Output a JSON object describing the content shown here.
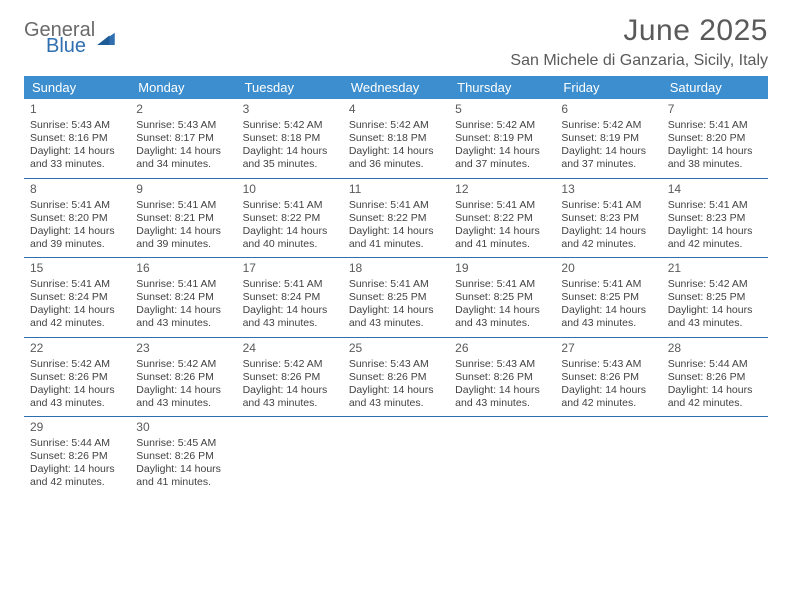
{
  "logo": {
    "text1": "General",
    "text2": "Blue"
  },
  "title": "June 2025",
  "location": "San Michele di Ganzaria, Sicily, Italy",
  "colors": {
    "header_bg": "#3c8ecf",
    "header_text": "#ffffff",
    "border": "#2f6fb0",
    "logo_gray": "#6a6a6a",
    "logo_blue": "#2f6fb0",
    "body_text": "#424242"
  },
  "day_names": [
    "Sunday",
    "Monday",
    "Tuesday",
    "Wednesday",
    "Thursday",
    "Friday",
    "Saturday"
  ],
  "weeks": [
    [
      {
        "day": "1",
        "sunrise": "5:43 AM",
        "sunset": "8:16 PM",
        "daylight": "14 hours and 33 minutes."
      },
      {
        "day": "2",
        "sunrise": "5:43 AM",
        "sunset": "8:17 PM",
        "daylight": "14 hours and 34 minutes."
      },
      {
        "day": "3",
        "sunrise": "5:42 AM",
        "sunset": "8:18 PM",
        "daylight": "14 hours and 35 minutes."
      },
      {
        "day": "4",
        "sunrise": "5:42 AM",
        "sunset": "8:18 PM",
        "daylight": "14 hours and 36 minutes."
      },
      {
        "day": "5",
        "sunrise": "5:42 AM",
        "sunset": "8:19 PM",
        "daylight": "14 hours and 37 minutes."
      },
      {
        "day": "6",
        "sunrise": "5:42 AM",
        "sunset": "8:19 PM",
        "daylight": "14 hours and 37 minutes."
      },
      {
        "day": "7",
        "sunrise": "5:41 AM",
        "sunset": "8:20 PM",
        "daylight": "14 hours and 38 minutes."
      }
    ],
    [
      {
        "day": "8",
        "sunrise": "5:41 AM",
        "sunset": "8:20 PM",
        "daylight": "14 hours and 39 minutes."
      },
      {
        "day": "9",
        "sunrise": "5:41 AM",
        "sunset": "8:21 PM",
        "daylight": "14 hours and 39 minutes."
      },
      {
        "day": "10",
        "sunrise": "5:41 AM",
        "sunset": "8:22 PM",
        "daylight": "14 hours and 40 minutes."
      },
      {
        "day": "11",
        "sunrise": "5:41 AM",
        "sunset": "8:22 PM",
        "daylight": "14 hours and 41 minutes."
      },
      {
        "day": "12",
        "sunrise": "5:41 AM",
        "sunset": "8:22 PM",
        "daylight": "14 hours and 41 minutes."
      },
      {
        "day": "13",
        "sunrise": "5:41 AM",
        "sunset": "8:23 PM",
        "daylight": "14 hours and 42 minutes."
      },
      {
        "day": "14",
        "sunrise": "5:41 AM",
        "sunset": "8:23 PM",
        "daylight": "14 hours and 42 minutes."
      }
    ],
    [
      {
        "day": "15",
        "sunrise": "5:41 AM",
        "sunset": "8:24 PM",
        "daylight": "14 hours and 42 minutes."
      },
      {
        "day": "16",
        "sunrise": "5:41 AM",
        "sunset": "8:24 PM",
        "daylight": "14 hours and 43 minutes."
      },
      {
        "day": "17",
        "sunrise": "5:41 AM",
        "sunset": "8:24 PM",
        "daylight": "14 hours and 43 minutes."
      },
      {
        "day": "18",
        "sunrise": "5:41 AM",
        "sunset": "8:25 PM",
        "daylight": "14 hours and 43 minutes."
      },
      {
        "day": "19",
        "sunrise": "5:41 AM",
        "sunset": "8:25 PM",
        "daylight": "14 hours and 43 minutes."
      },
      {
        "day": "20",
        "sunrise": "5:41 AM",
        "sunset": "8:25 PM",
        "daylight": "14 hours and 43 minutes."
      },
      {
        "day": "21",
        "sunrise": "5:42 AM",
        "sunset": "8:25 PM",
        "daylight": "14 hours and 43 minutes."
      }
    ],
    [
      {
        "day": "22",
        "sunrise": "5:42 AM",
        "sunset": "8:26 PM",
        "daylight": "14 hours and 43 minutes."
      },
      {
        "day": "23",
        "sunrise": "5:42 AM",
        "sunset": "8:26 PM",
        "daylight": "14 hours and 43 minutes."
      },
      {
        "day": "24",
        "sunrise": "5:42 AM",
        "sunset": "8:26 PM",
        "daylight": "14 hours and 43 minutes."
      },
      {
        "day": "25",
        "sunrise": "5:43 AM",
        "sunset": "8:26 PM",
        "daylight": "14 hours and 43 minutes."
      },
      {
        "day": "26",
        "sunrise": "5:43 AM",
        "sunset": "8:26 PM",
        "daylight": "14 hours and 43 minutes."
      },
      {
        "day": "27",
        "sunrise": "5:43 AM",
        "sunset": "8:26 PM",
        "daylight": "14 hours and 42 minutes."
      },
      {
        "day": "28",
        "sunrise": "5:44 AM",
        "sunset": "8:26 PM",
        "daylight": "14 hours and 42 minutes."
      }
    ],
    [
      {
        "day": "29",
        "sunrise": "5:44 AM",
        "sunset": "8:26 PM",
        "daylight": "14 hours and 42 minutes."
      },
      {
        "day": "30",
        "sunrise": "5:45 AM",
        "sunset": "8:26 PM",
        "daylight": "14 hours and 41 minutes."
      },
      null,
      null,
      null,
      null,
      null
    ]
  ],
  "labels": {
    "sunrise": "Sunrise:",
    "sunset": "Sunset:",
    "daylight": "Daylight:"
  }
}
